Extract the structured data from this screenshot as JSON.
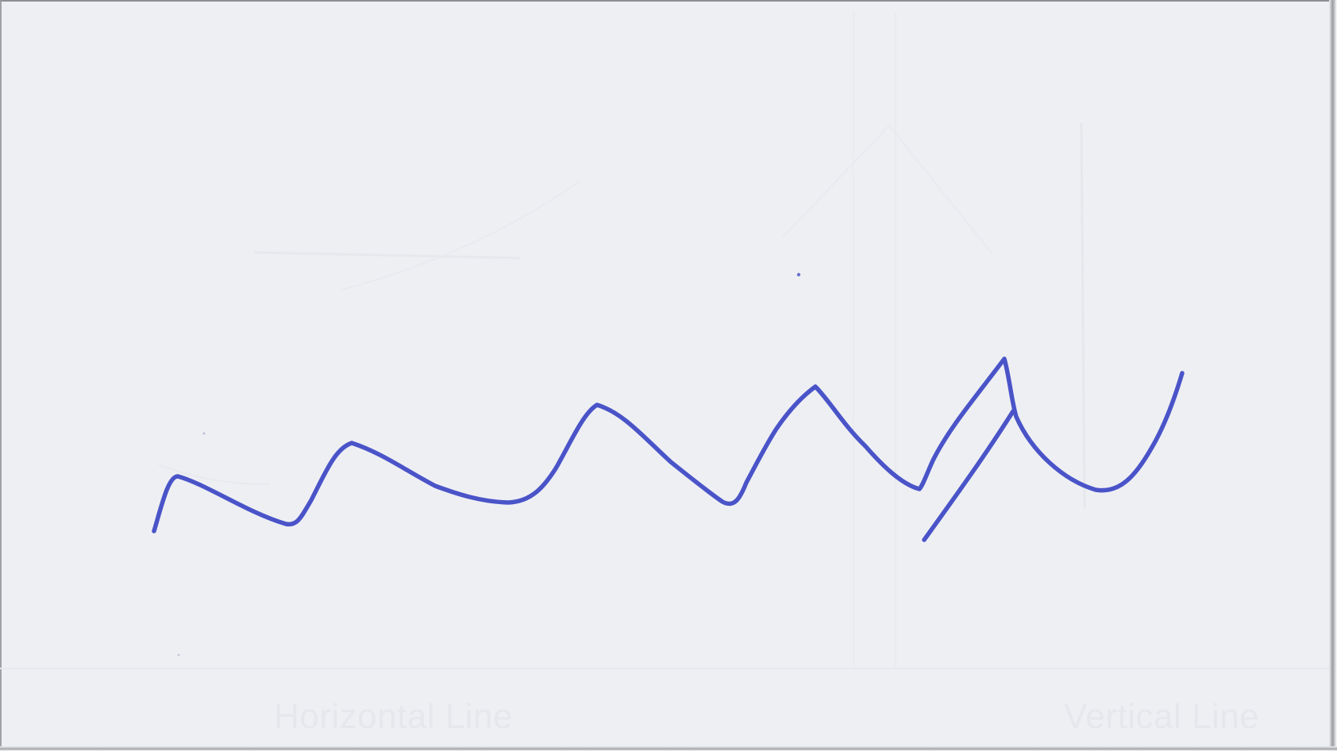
{
  "scan": {
    "card_color": "#eeeff3",
    "ink_color": "#4a54c8",
    "faint_text": {
      "left": "Horizontal Line",
      "right": "Vertical Line"
    }
  },
  "drawing": {
    "kind": "handwritten-squiggle",
    "stroke_icon": "pen-stroke"
  }
}
